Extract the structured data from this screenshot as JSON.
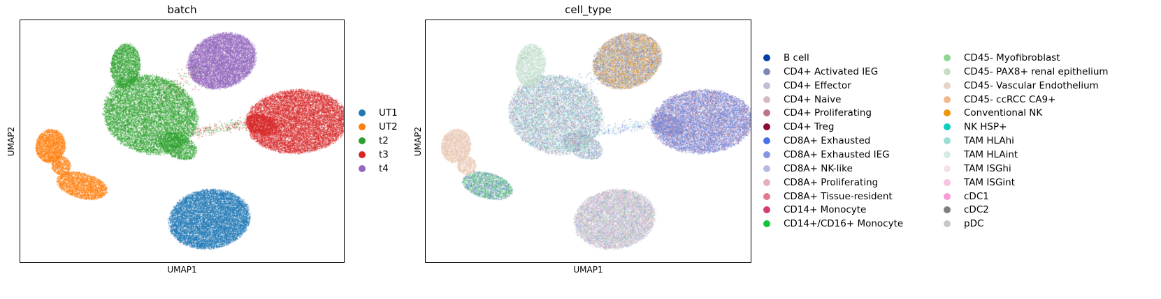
{
  "panels": [
    {
      "title": "batch",
      "xlabel": "UMAP1",
      "ylabel": "UMAP2"
    },
    {
      "title": "cell_type",
      "xlabel": "UMAP1",
      "ylabel": "UMAP2"
    }
  ],
  "chart_data": [
    {
      "type": "scatter",
      "title": "batch",
      "xlabel": "UMAP1",
      "ylabel": "UMAP2",
      "x_ticks": "none",
      "y_ticks": "none",
      "legend_placement": "right",
      "series": [
        {
          "name": "UT1",
          "color": "#1f77b4",
          "region": "bottom-center cluster"
        },
        {
          "name": "UT2",
          "color": "#ff7f0e",
          "region": "left clusters"
        },
        {
          "name": "t2",
          "color": "#2ca02c",
          "region": "upper-left large cluster"
        },
        {
          "name": "t3",
          "color": "#d62728",
          "region": "right cluster"
        },
        {
          "name": "t4",
          "color": "#9467bd",
          "region": "top-center cluster"
        }
      ]
    },
    {
      "type": "scatter",
      "title": "cell_type",
      "xlabel": "UMAP1",
      "ylabel": "UMAP2",
      "x_ticks": "none",
      "y_ticks": "none",
      "legend_placement": "right, two columns",
      "series": [
        {
          "name": "B cell",
          "color": "#023fa5"
        },
        {
          "name": "CD4+ Activated IEG",
          "color": "#7d87b9"
        },
        {
          "name": "CD4+ Effector",
          "color": "#bec1d4"
        },
        {
          "name": "CD4+ Naive",
          "color": "#d6bcc0"
        },
        {
          "name": "CD4+ Proliferating",
          "color": "#bb7784"
        },
        {
          "name": "CD4+ Treg",
          "color": "#8e063b"
        },
        {
          "name": "CD8A+ Exhausted",
          "color": "#4a6fe3"
        },
        {
          "name": "CD8A+ Exhausted IEG",
          "color": "#8595e1"
        },
        {
          "name": "CD8A+ NK-like",
          "color": "#b5bbe3"
        },
        {
          "name": "CD8A+ Proliferating",
          "color": "#e6afb9"
        },
        {
          "name": "CD8A+ Tissue-resident",
          "color": "#e07b91"
        },
        {
          "name": "CD14+ Monocyte",
          "color": "#d33f6a"
        },
        {
          "name": "CD14+/CD16+ Monocyte",
          "color": "#11c638"
        },
        {
          "name": "CD45- Myofibroblast",
          "color": "#8dd593"
        },
        {
          "name": "CD45- PAX8+ renal epithelium",
          "color": "#c6dec7"
        },
        {
          "name": "CD45- Vascular Endothelium",
          "color": "#ead3c6"
        },
        {
          "name": "CD45- ccRCC CA9+",
          "color": "#f0b98d"
        },
        {
          "name": "Conventional NK",
          "color": "#ef9708"
        },
        {
          "name": "NK HSP+",
          "color": "#0fcfc0"
        },
        {
          "name": "TAM HLAhi",
          "color": "#9cded6"
        },
        {
          "name": "TAM HLAint",
          "color": "#d5eae7"
        },
        {
          "name": "TAM ISGhi",
          "color": "#f3e1eb"
        },
        {
          "name": "TAM ISGint",
          "color": "#f6c4e1"
        },
        {
          "name": "cDC1",
          "color": "#f79cd4"
        },
        {
          "name": "cDC2",
          "color": "#7f7f7f"
        },
        {
          "name": "pDC",
          "color": "#c7c7c7"
        }
      ]
    }
  ]
}
